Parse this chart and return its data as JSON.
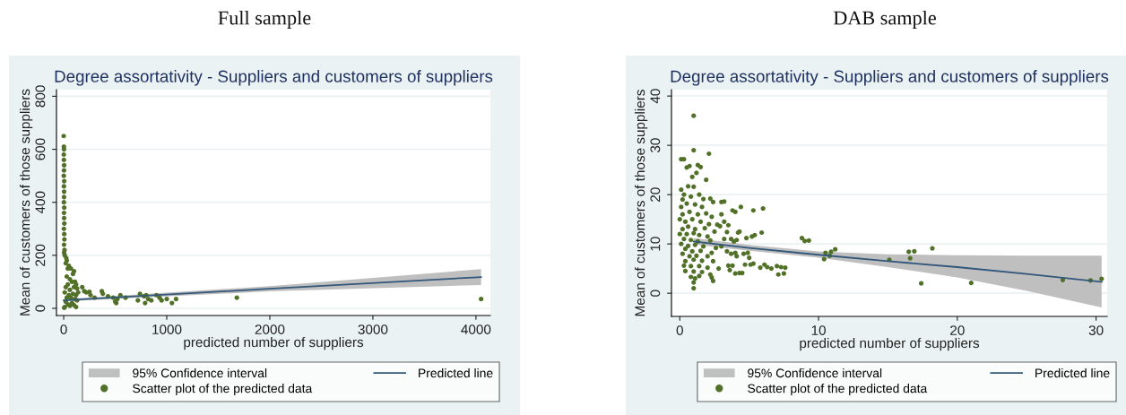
{
  "chart_data": [
    {
      "type": "scatter",
      "title": "Full sample",
      "subtitle": "Degree assortativity - Suppliers and customers of suppliers",
      "xlabel": "predicted number of suppliers",
      "ylabel": "Mean of customers of those suppliers",
      "xlim": [
        -70,
        4140
      ],
      "ylim": [
        -27,
        825
      ],
      "xticks": [
        0,
        1000,
        2000,
        3000,
        4000
      ],
      "yticks": [
        0,
        200,
        400,
        600,
        800
      ],
      "grid": "y",
      "legend": "bottom",
      "annotations": [
        "95% Confidence interval"
      ],
      "series": [
        {
          "type": "scatter",
          "name": "Scatter plot of the predicted data",
          "color": "#527128",
          "marker": "circle",
          "x": [
            0,
            2,
            3,
            1,
            2,
            4,
            3,
            1,
            5,
            2,
            4,
            3,
            2,
            5,
            3,
            4,
            6,
            2,
            5,
            7,
            3,
            8,
            4,
            10,
            25,
            30,
            20,
            50,
            40,
            70,
            100,
            90,
            30,
            60,
            80,
            110,
            120,
            40,
            20,
            100,
            130,
            60,
            10,
            140,
            90,
            50,
            120,
            30,
            70,
            110,
            130,
            20,
            80,
            40,
            100,
            60,
            10,
            120,
            5,
            180,
            200,
            220,
            250,
            260,
            300,
            370,
            380,
            430,
            480,
            500,
            510,
            520,
            550,
            600,
            720,
            740,
            780,
            790,
            800,
            820,
            850,
            900,
            930,
            950,
            1000,
            1050,
            1090,
            1680,
            4050
          ],
          "values": [
            650,
            610,
            600,
            580,
            560,
            540,
            520,
            500,
            480,
            460,
            440,
            420,
            400,
            380,
            360,
            340,
            320,
            300,
            280,
            260,
            240,
            220,
            210,
            200,
            190,
            180,
            170,
            160,
            150,
            150,
            140,
            130,
            120,
            110,
            100,
            100,
            90,
            90,
            80,
            80,
            75,
            70,
            60,
            60,
            55,
            50,
            50,
            40,
            40,
            35,
            30,
            25,
            20,
            15,
            12,
            10,
            5,
            5,
            2,
            80,
            65,
            60,
            62,
            50,
            40,
            65,
            55,
            45,
            40,
            25,
            20,
            35,
            50,
            40,
            30,
            55,
            45,
            20,
            50,
            35,
            30,
            50,
            40,
            30,
            35,
            20,
            35,
            40,
            35
          ]
        },
        {
          "type": "line",
          "name": "Predicted line",
          "color": "#31577a",
          "x": [
            0,
            2000,
            4050
          ],
          "values": [
            30,
            74,
            118
          ],
          "lower": [
            26,
            64,
            88
          ],
          "upper": [
            35,
            84,
            148
          ]
        }
      ]
    },
    {
      "type": "scatter",
      "title": "DAB sample",
      "subtitle": "Degree assortativity - Suppliers and customers of suppliers",
      "xlabel": "predicted number of suppliers",
      "ylabel": "Mean of customers of those suppliers",
      "xlim": [
        -0.6,
        30.8
      ],
      "ylim": [
        -4.7,
        41.3
      ],
      "xticks": [
        0,
        10,
        20,
        30
      ],
      "yticks": [
        0,
        10,
        20,
        30,
        40
      ],
      "grid": "y",
      "legend": "bottom",
      "annotations": [
        "95% Confidence interval"
      ],
      "series": [
        {
          "type": "scatter",
          "name": "Scatter plot of the predicted data",
          "color": "#527128",
          "marker": "circle",
          "x": [
            1,
            1,
            0.1,
            0.3,
            2.1,
            0.5,
            0.7,
            1.3,
            1.5,
            1.2,
            0.9,
            1.9,
            0.6,
            0.1,
            0.3,
            1,
            1.4,
            0.2,
            0.8,
            1.7,
            2.2,
            0.1,
            0.5,
            1.1,
            1.6,
            2.4,
            0.2,
            0.7,
            1.3,
            1.9,
            2.3,
            0,
            0.4,
            0.9,
            1.5,
            2.1,
            2.7,
            0.2,
            0.6,
            1.1,
            1.8,
            2.5,
            0,
            0.5,
            1,
            1.4,
            2,
            0.3,
            0.8,
            1.3,
            2.2,
            0.1,
            0.6,
            1.1,
            1.7,
            2.6,
            0.4,
            0.9,
            1.5,
            2.3,
            0.2,
            0.7,
            1.2,
            2,
            0.4,
            1,
            1.6,
            2.4,
            0.3,
            0.8,
            1.4,
            2,
            0.4,
            1,
            1.6,
            2.2,
            0.8,
            1.1,
            1.4,
            2.3,
            2.4,
            1,
            1,
            3,
            3.2,
            3,
            3.2,
            3.5,
            2.9,
            3.4,
            3.2,
            3.7,
            3.9,
            4.1,
            4.2,
            4.3,
            3.8,
            4,
            4.4,
            5.3,
            6,
            4.8,
            5.2,
            5.4,
            5.9,
            3,
            3.4,
            3.7,
            4,
            4.1,
            4.6,
            4.9,
            5,
            2.8,
            3.5,
            3.8,
            3.6,
            4,
            4.3,
            4.5,
            4.7,
            5.1,
            5.3,
            5.8,
            6.1,
            6.3,
            6.6,
            7,
            7.3,
            7.6,
            7.1,
            7.5,
            8.8,
            9,
            9.3,
            10.4,
            10.5,
            10.8,
            10.9,
            11.2,
            15.1,
            16.5,
            16.6,
            16.9,
            17.4,
            18.2,
            21,
            27.6,
            29.6,
            30.4
          ],
          "values": [
            36,
            29,
            27.2,
            27.2,
            28.3,
            25.5,
            25.8,
            26,
            25.6,
            24.4,
            23.6,
            23,
            21.7,
            21,
            20,
            21.6,
            20,
            19,
            19.6,
            19.1,
            19.2,
            17.5,
            18.2,
            18,
            17.5,
            18.5,
            16,
            16.5,
            16,
            16.2,
            15.5,
            15,
            14.5,
            15,
            14.5,
            14,
            13.9,
            13,
            13.5,
            13,
            13.2,
            12.5,
            12,
            12,
            12.2,
            11.8,
            11.5,
            11,
            10.8,
            10.5,
            10.7,
            10,
            9.6,
            9.8,
            9.5,
            9.2,
            9,
            8.5,
            8.6,
            8.2,
            8,
            7.5,
            7.6,
            7.5,
            6.5,
            6.8,
            6.6,
            6.5,
            5.6,
            5.5,
            5.5,
            5.2,
            4.5,
            4.4,
            4.3,
            3.8,
            3.3,
            3,
            3.5,
            3.2,
            2.5,
            2.2,
            1,
            18.5,
            18.6,
            16,
            14.5,
            13.8,
            13.6,
            12.4,
            11,
            11,
            10.5,
            10.8,
            12.3,
            12.5,
            16.8,
            16.5,
            17.5,
            16.8,
            17.2,
            11.2,
            11.5,
            11.8,
            12.3,
            9.5,
            8.5,
            8,
            8.2,
            7.5,
            8,
            8.2,
            7.2,
            5,
            5.6,
            5.6,
            4.7,
            4,
            4.1,
            4.1,
            5.8,
            5.8,
            6,
            5.2,
            5.8,
            5.3,
            5,
            5.5,
            5.3,
            5.2,
            3.8,
            4,
            11.2,
            10.6,
            10.7,
            6.9,
            8.2,
            7.6,
            8.4,
            8.9,
            6.8,
            8.4,
            7.1,
            8.5,
            2,
            9.1,
            2.1,
            2.7,
            2.6,
            2.9
          ]
        },
        {
          "type": "line",
          "name": "Predicted line",
          "color": "#31577a",
          "x": [
            1,
            5,
            10,
            15,
            20,
            25,
            30.4
          ],
          "values": [
            10.5,
            9.2,
            7.8,
            6.5,
            5.3,
            3.9,
            2.3
          ],
          "lower": [
            9.9,
            8.6,
            7.2,
            5.3,
            3.2,
            0.5,
            -2.9
          ],
          "upper": [
            11.2,
            9.8,
            8.5,
            7.9,
            7.7,
            7.6,
            7.6
          ]
        }
      ]
    }
  ]
}
